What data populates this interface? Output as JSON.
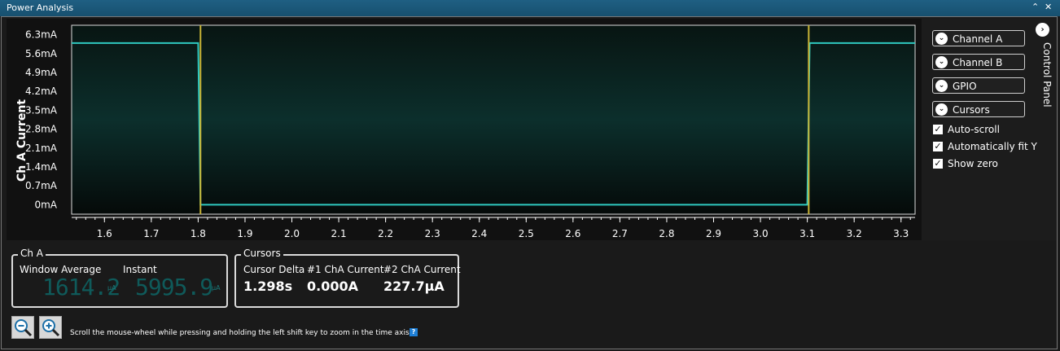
{
  "window": {
    "title": "Power Analysis",
    "collapse_icon": "chevron-up-icon",
    "close_icon": "close-icon"
  },
  "chart": {
    "y_title": "Ch A Current",
    "tick_color": "#ffffff",
    "trace_color": "#2fc9c0",
    "cursor_color": "#c8b436"
  },
  "chart_data": {
    "type": "line",
    "ylabel": "Ch A Current",
    "xlabel": "",
    "y_ticks": [
      "6.3mA",
      "5.6mA",
      "4.9mA",
      "4.2mA",
      "3.5mA",
      "2.8mA",
      "2.1mA",
      "1.4mA",
      "0.7mA",
      "0mA"
    ],
    "y_tick_values": [
      6.3,
      5.6,
      4.9,
      4.2,
      3.5,
      2.8,
      2.1,
      1.4,
      0.7,
      0
    ],
    "x_ticks": [
      "1.6",
      "1.7",
      "1.8",
      "1.9",
      "2.0",
      "2.1",
      "2.2",
      "2.3",
      "2.4",
      "2.5",
      "2.6",
      "2.7",
      "2.8",
      "2.9",
      "3.0",
      "3.1",
      "3.2",
      "3.3"
    ],
    "xlim": [
      1.53,
      3.33
    ],
    "ylim": [
      -0.35,
      6.65
    ],
    "series": [
      {
        "values_x": [
          1.53,
          1.8,
          1.805,
          3.1,
          3.105,
          3.33
        ],
        "values_y": [
          5.99,
          5.99,
          0,
          0,
          5.99,
          5.99
        ]
      }
    ],
    "cursors": [
      1.805,
      3.103
    ]
  },
  "control_panel": {
    "label": "Control Panel",
    "sections": [
      "Channel A",
      "Channel B",
      "GPIO",
      "Cursors"
    ],
    "checkboxes": [
      {
        "label": "Auto-scroll",
        "checked": true
      },
      {
        "label": "Automatically fit Y",
        "checked": true
      },
      {
        "label": "Show zero",
        "checked": true
      }
    ]
  },
  "cha": {
    "legend": "Ch A",
    "window_average_label": "Window Average",
    "instant_label": "Instant",
    "window_average_value": "1614.2",
    "instant_value": "5995.9",
    "unit": "µA"
  },
  "cursors": {
    "legend": "Cursors",
    "delta_label": "Cursor Delta",
    "c1_label": "#1 ChA Current",
    "c2_label": "#2 ChA Current",
    "delta_value": "1.298s",
    "c1_value": "0.000A",
    "c2_value": "227.7µA"
  },
  "footer": {
    "hint": "Scroll the mouse-wheel while pressing and holding the left shift key to zoom in the time axis.",
    "zoom_out_icon": "zoom-out-icon",
    "zoom_in_icon": "zoom-in-icon",
    "help_label": "?"
  }
}
